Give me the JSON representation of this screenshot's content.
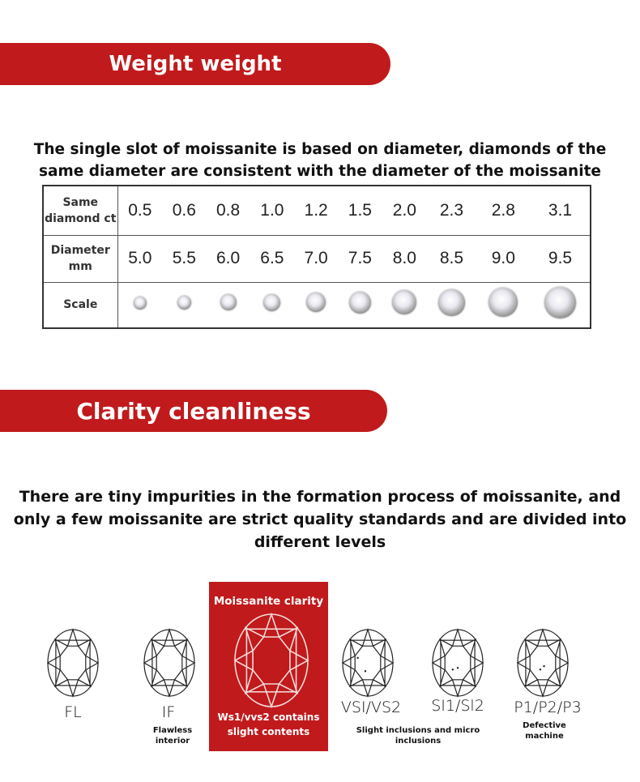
{
  "weight_banner": "Weight weight",
  "weight_intro": "The single slot of moissanite is based on diameter, diamonds of the same diameter are consistent with the diameter of the moissanite",
  "table": {
    "rows": [
      {
        "label": "Same diamond ct",
        "values": [
          "0.5",
          "0.6",
          "0.8",
          "1.0",
          "1.2",
          "1.5",
          "2.0",
          "2.3",
          "2.8",
          "3.1"
        ]
      },
      {
        "label": "Diameter mm",
        "values": [
          "5.0",
          "5.5",
          "6.0",
          "6.5",
          "7.0",
          "7.5",
          "8.0",
          "8.5",
          "9.0",
          "9.5"
        ]
      },
      {
        "label": "Scale"
      }
    ]
  },
  "clarity_banner": "Clarity cleanliness",
  "clarity_intro": "There are tiny impurities in the formation process of moissanite, and only a few moissanite are strict quality standards and are divided into different levels",
  "clarity": {
    "panel_title": "Moissanite clarity",
    "panel_desc": "Ws1/vvs2 contains slight contents",
    "grades": [
      "FL",
      "IF",
      "VSI/VS2",
      "SI1/Sl2",
      "P1/P2/P3"
    ],
    "notes": {
      "if": "Flawless interior",
      "vs_si": "Slight inclusions and micro inclusions",
      "p": "Defective machine"
    }
  },
  "colors": {
    "accent": "#c11a1c"
  }
}
